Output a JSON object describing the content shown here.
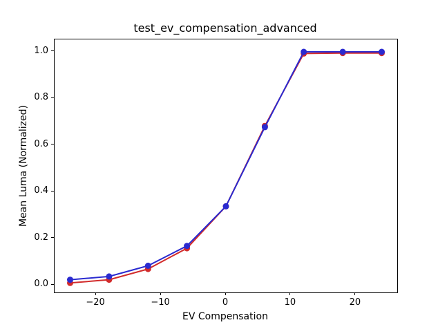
{
  "chart_data": {
    "type": "line",
    "title": "test_ev_compensation_advanced",
    "xlabel": "EV Compensation",
    "ylabel": "Mean Luma (Normalized)",
    "x": [
      -24,
      -18,
      -12,
      -6,
      0,
      6,
      12,
      18,
      24
    ],
    "series": [
      {
        "name": "red",
        "color": "#d22b2b",
        "marker": "circle",
        "values": [
          0.008,
          0.022,
          0.068,
          0.157,
          0.337,
          0.682,
          0.993,
          0.995,
          0.995
        ]
      },
      {
        "name": "blue",
        "color": "#2a2ad0",
        "marker": "circle",
        "values": [
          0.022,
          0.036,
          0.082,
          0.167,
          0.337,
          0.677,
          1.0,
          1.0,
          1.0
        ]
      }
    ],
    "xticks": [
      -20,
      -10,
      0,
      10,
      20
    ],
    "xtick_labels": [
      "−20",
      "−10",
      "0",
      "10",
      "20"
    ],
    "yticks": [
      0.0,
      0.2,
      0.4,
      0.6,
      0.8,
      1.0
    ],
    "ytick_labels": [
      "0.0",
      "0.2",
      "0.4",
      "0.6",
      "0.8",
      "1.0"
    ],
    "xlim": [
      -26.4,
      26.4
    ],
    "ylim": [
      -0.0326,
      1.0534
    ],
    "grid": false,
    "legend": null,
    "line_width": 2,
    "marker_radius": 4.5
  },
  "colors": {
    "background": "#ffffff",
    "spine": "#000000",
    "text": "#000000"
  }
}
